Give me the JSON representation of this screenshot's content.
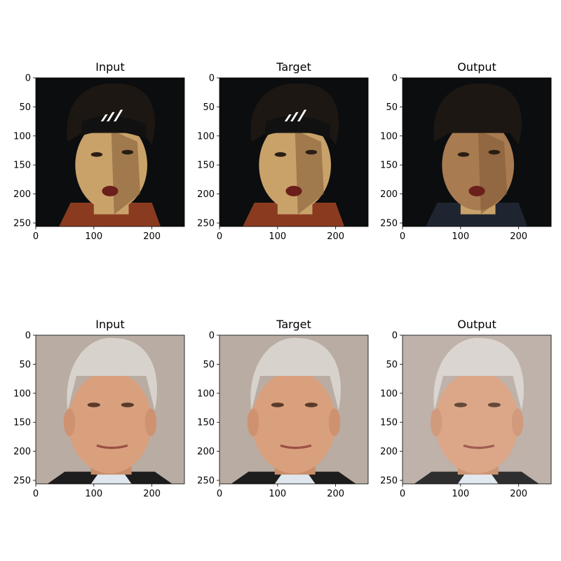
{
  "figure": {
    "rows": [
      {
        "subject": "young man with dark curly hair and black headband, dark background",
        "panels": [
          {
            "title": "Input",
            "variant": "original"
          },
          {
            "title": "Target",
            "variant": "target"
          },
          {
            "title": "Output",
            "variant": "generated"
          }
        ]
      },
      {
        "subject": "older man with white/grey hair, light grey background",
        "panels": [
          {
            "title": "Input",
            "variant": "original"
          },
          {
            "title": "Target",
            "variant": "target"
          },
          {
            "title": "Output",
            "variant": "generated"
          }
        ]
      }
    ],
    "x_ticks": [
      "0",
      "100",
      "200"
    ],
    "y_ticks": [
      "0",
      "50",
      "100",
      "150",
      "200",
      "250"
    ]
  },
  "colors": {
    "row1_background": "#0b0d0f",
    "row1_skin": "#c9a26a",
    "row1_hair": "#1c1712",
    "row2_background": "#b9aca3",
    "row2_skin": "#d9a07e",
    "row2_hair": "#d7d2cc"
  }
}
